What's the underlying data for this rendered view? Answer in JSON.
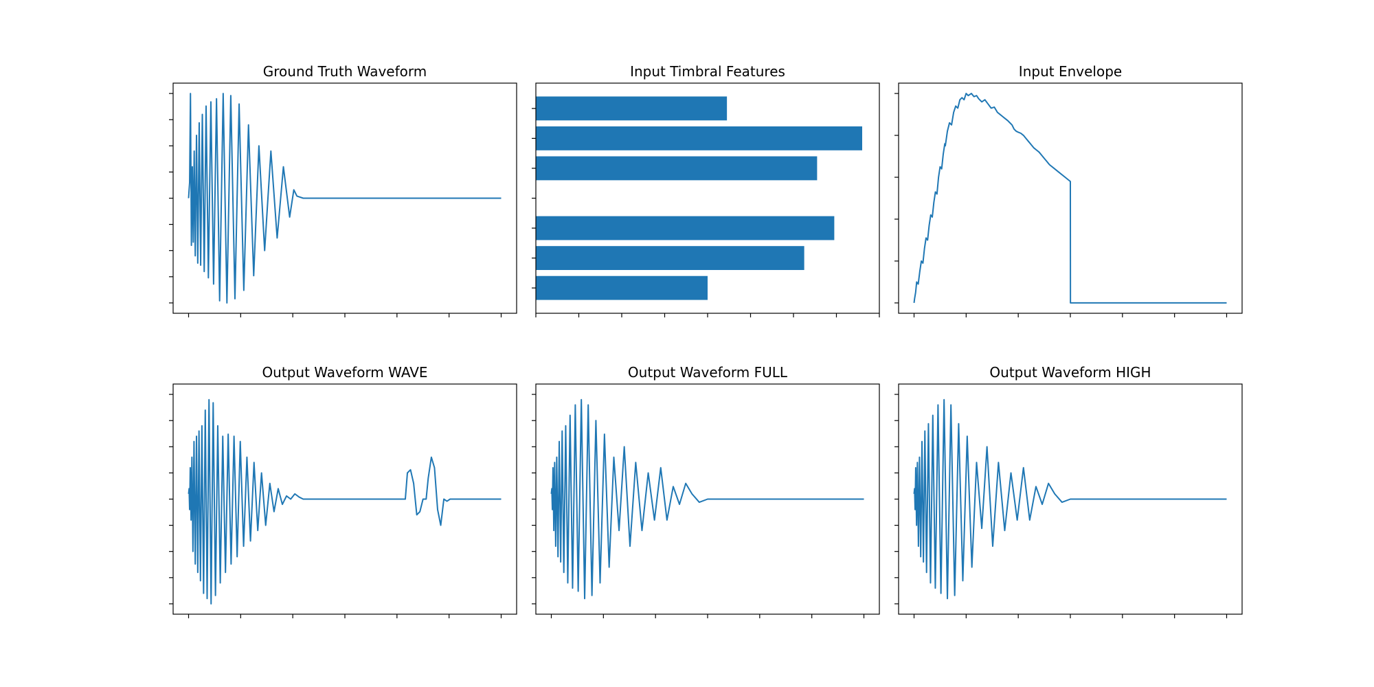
{
  "chart_data": [
    {
      "type": "line",
      "title": "Ground Truth Waveform",
      "x_ticks": 7,
      "y_ticks": 9,
      "ylim": [
        -1,
        1
      ],
      "series": [
        {
          "x": [
            0,
            0.05,
            0.1,
            0.18,
            0.27,
            0.36,
            0.45,
            0.54,
            0.64,
            0.76,
            0.88,
            1.02,
            1.16,
            1.32,
            1.5,
            1.68,
            1.9,
            2.14,
            2.4,
            2.68,
            2.98,
            3.32,
            3.68,
            4.05,
            4.45,
            4.85,
            5.3,
            5.75,
            6.25,
            6.75,
            7.3,
            7.9,
            8.5,
            9.1,
            9.7,
            10.1,
            10.4,
            11,
            30
          ],
          "y": [
            0,
            0.08,
            0.15,
            1.0,
            -0.45,
            0.3,
            -0.42,
            0.45,
            -0.55,
            0.6,
            -0.62,
            0.72,
            -0.64,
            0.8,
            -0.7,
            0.88,
            -0.76,
            0.92,
            -0.82,
            0.95,
            -0.98,
            1.0,
            -1.0,
            0.98,
            -0.96,
            0.9,
            -0.88,
            0.7,
            -0.74,
            0.5,
            -0.5,
            0.45,
            -0.38,
            0.3,
            -0.18,
            0.08,
            0.02,
            0,
            0
          ]
        }
      ]
    },
    {
      "type": "bar",
      "title": "Input Timbral Features",
      "orientation": "horizontal",
      "x_ticks": 9,
      "xlim": [
        0,
        8
      ],
      "y_ticks": 7,
      "values": [
        4.45,
        7.6,
        6.55,
        null,
        6.95,
        6.25,
        4.0
      ]
    },
    {
      "type": "line",
      "title": "Input Envelope",
      "x_ticks": 7,
      "y_ticks": 6,
      "ylim": [
        0,
        1
      ],
      "series": [
        {
          "x": [
            0,
            0.1,
            0.3,
            0.5,
            0.8,
            1.1,
            1.4,
            1.7,
            2.0,
            2.3,
            2.6,
            2.9,
            3.2,
            3.5,
            3.8,
            4.1,
            4.4,
            4.7,
            5.0,
            5.3,
            5.6,
            5.9,
            6.0,
            6.4,
            6.8,
            7.2,
            7.6,
            8.0,
            8.4,
            8.8,
            9.2,
            9.6,
            10.0,
            10.4,
            11.0,
            11.5,
            12.0,
            12.4,
            13.0,
            13.6,
            14.2,
            14.8,
            15.4,
            16.0,
            16.5,
            17.0,
            17.5,
            18.0,
            18.4,
            18.8,
            19.2,
            19.6,
            20.0,
            20.5,
            21.0,
            21.5,
            22.0,
            22.5,
            23.0,
            23.5,
            24.0,
            24.5,
            25.0,
            25.5,
            26.0,
            27.0,
            28.0,
            29.0,
            30.0,
            30.02,
            33.0,
            36.0,
            39.0,
            42.0,
            45.0,
            48.0,
            51.0,
            54.0,
            57.0,
            60.0
          ],
          "y": [
            0,
            0.02,
            0.05,
            0.1,
            0.09,
            0.15,
            0.2,
            0.19,
            0.26,
            0.31,
            0.3,
            0.37,
            0.42,
            0.41,
            0.48,
            0.53,
            0.52,
            0.6,
            0.65,
            0.64,
            0.71,
            0.76,
            0.75,
            0.82,
            0.86,
            0.85,
            0.91,
            0.94,
            0.93,
            0.97,
            0.98,
            0.97,
            1.0,
            0.99,
            1.0,
            0.985,
            0.99,
            0.975,
            0.96,
            0.97,
            0.95,
            0.93,
            0.935,
            0.91,
            0.9,
            0.89,
            0.88,
            0.87,
            0.86,
            0.85,
            0.83,
            0.82,
            0.815,
            0.81,
            0.8,
            0.785,
            0.77,
            0.755,
            0.74,
            0.73,
            0.72,
            0.705,
            0.69,
            0.675,
            0.66,
            0.64,
            0.62,
            0.6,
            0.58,
            0,
            0,
            0,
            0,
            0,
            0,
            0,
            0,
            0,
            0,
            0
          ]
        }
      ]
    },
    {
      "type": "line",
      "title": "Output Waveform WAVE",
      "x_ticks": 7,
      "y_ticks": 9,
      "ylim": [
        -1,
        1
      ],
      "series": [
        {
          "x": [
            0,
            0.05,
            0.1,
            0.16,
            0.24,
            0.32,
            0.42,
            0.52,
            0.64,
            0.76,
            0.88,
            1.0,
            1.14,
            1.28,
            1.44,
            1.6,
            1.78,
            1.96,
            2.16,
            2.36,
            2.58,
            2.8,
            3.04,
            3.28,
            3.54,
            3.8,
            4.08,
            4.36,
            4.66,
            4.96,
            5.28,
            5.6,
            5.94,
            6.28,
            6.64,
            7.0,
            7.4,
            7.8,
            8.2,
            8.6,
            9.0,
            9.4,
            9.8,
            10.2,
            10.6,
            11.0,
            11.5,
            12.0,
            13.0,
            15.0,
            17.0,
            19.0,
            20.8,
            21.0,
            21.3,
            21.6,
            21.9,
            22.2,
            22.5,
            22.8,
            23.0,
            23.3,
            23.6,
            23.9,
            24.2,
            24.5,
            24.8,
            25.1,
            25.4,
            25.7,
            26.0,
            27.0,
            30.0
          ],
          "y": [
            0.05,
            0.1,
            -0.1,
            0.3,
            -0.2,
            0.4,
            -0.5,
            0.55,
            -0.62,
            0.6,
            -0.7,
            0.65,
            -0.78,
            0.7,
            -0.9,
            0.85,
            -0.95,
            0.95,
            -1.0,
            0.92,
            -0.92,
            0.7,
            -0.8,
            0.6,
            -0.7,
            0.62,
            -0.62,
            0.6,
            -0.55,
            0.55,
            -0.45,
            0.4,
            -0.4,
            0.35,
            -0.3,
            0.25,
            -0.25,
            0.15,
            -0.12,
            0.1,
            -0.05,
            0.03,
            0,
            0.05,
            0.02,
            0,
            0,
            0,
            0,
            0,
            0,
            0,
            0,
            0.25,
            0.28,
            0.15,
            -0.15,
            -0.12,
            0,
            0,
            0.2,
            0.4,
            0.3,
            -0.1,
            -0.25,
            0,
            -0.02,
            0,
            0,
            0,
            0,
            0,
            0
          ]
        }
      ]
    },
    {
      "type": "line",
      "title": "Output Waveform FULL",
      "x_ticks": 7,
      "y_ticks": 9,
      "ylim": [
        -1,
        1
      ],
      "series": [
        {
          "x": [
            0,
            0.05,
            0.1,
            0.16,
            0.24,
            0.32,
            0.42,
            0.52,
            0.64,
            0.76,
            0.9,
            1.04,
            1.2,
            1.38,
            1.58,
            1.8,
            2.04,
            2.3,
            2.58,
            2.88,
            3.2,
            3.54,
            3.9,
            4.28,
            4.68,
            5.1,
            5.55,
            6.0,
            6.5,
            7.0,
            7.55,
            8.1,
            8.7,
            9.3,
            9.9,
            10.5,
            11.1,
            11.7,
            12.3,
            12.9,
            13.5,
            14.2,
            15.0,
            30.0
          ],
          "y": [
            0.05,
            0.1,
            -0.1,
            0.3,
            -0.3,
            0.35,
            -0.45,
            0.4,
            -0.55,
            0.55,
            -0.6,
            0.65,
            -0.7,
            0.7,
            -0.8,
            0.8,
            -0.85,
            0.9,
            -0.88,
            0.95,
            -0.95,
            0.9,
            -0.92,
            0.75,
            -0.8,
            0.62,
            -0.65,
            0.4,
            -0.3,
            0.5,
            -0.45,
            0.35,
            -0.3,
            0.25,
            -0.2,
            0.3,
            -0.2,
            0.12,
            -0.05,
            0.15,
            0.05,
            -0.03,
            0,
            0
          ]
        }
      ]
    },
    {
      "type": "line",
      "title": "Output Waveform HIGH",
      "x_ticks": 7,
      "y_ticks": 9,
      "ylim": [
        -1,
        1
      ],
      "series": [
        {
          "x": [
            0,
            0.05,
            0.1,
            0.16,
            0.24,
            0.32,
            0.42,
            0.52,
            0.64,
            0.76,
            0.9,
            1.04,
            1.2,
            1.38,
            1.58,
            1.8,
            2.04,
            2.3,
            2.58,
            2.88,
            3.2,
            3.54,
            3.9,
            4.28,
            4.68,
            5.1,
            5.55,
            6.0,
            6.5,
            7.0,
            7.55,
            8.1,
            8.7,
            9.3,
            9.9,
            10.5,
            11.1,
            11.7,
            12.3,
            12.9,
            13.5,
            14.2,
            15.0,
            30.0
          ],
          "y": [
            0.05,
            0.1,
            -0.1,
            0.3,
            -0.25,
            0.35,
            -0.45,
            0.4,
            -0.55,
            0.55,
            -0.6,
            0.65,
            -0.7,
            0.72,
            -0.8,
            0.8,
            -0.85,
            0.9,
            -0.9,
            0.95,
            -0.95,
            0.9,
            -0.92,
            0.72,
            -0.78,
            0.6,
            -0.65,
            0.35,
            -0.28,
            0.5,
            -0.45,
            0.35,
            -0.3,
            0.25,
            -0.2,
            0.3,
            -0.2,
            0.12,
            -0.05,
            0.15,
            0.05,
            -0.03,
            0,
            0
          ]
        }
      ]
    }
  ]
}
